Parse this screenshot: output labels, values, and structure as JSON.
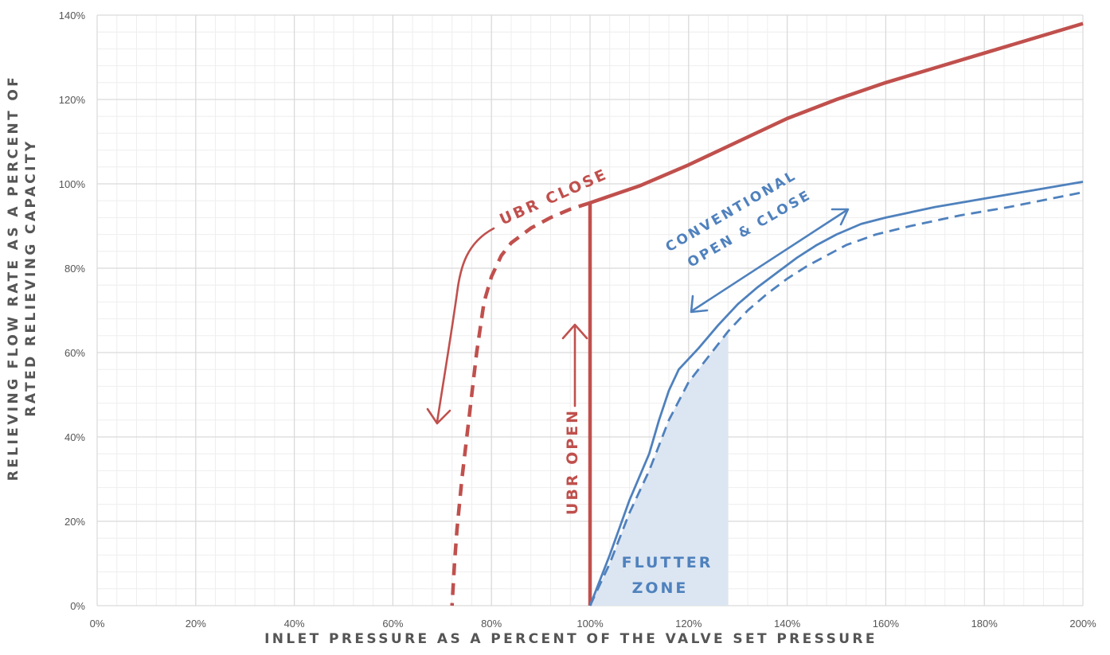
{
  "chart_data": {
    "type": "line",
    "xlabel": "INLET PRESSURE AS A PERCENT OF THE VALVE SET PRESSURE",
    "ylabel_lines": [
      "RELIEVING FLOW RATE AS A PERCENT OF",
      "RATED RELIEVING CAPACITY"
    ],
    "xlim": [
      0,
      200
    ],
    "ylim": [
      0,
      140
    ],
    "x_ticks": [
      {
        "v": 0,
        "label": "0%"
      },
      {
        "v": 20,
        "label": "20%"
      },
      {
        "v": 40,
        "label": "40%"
      },
      {
        "v": 60,
        "label": "60%"
      },
      {
        "v": 80,
        "label": "80%"
      },
      {
        "v": 100,
        "label": "100%"
      },
      {
        "v": 120,
        "label": "120%"
      },
      {
        "v": 140,
        "label": "140%"
      },
      {
        "v": 160,
        "label": "160%"
      },
      {
        "v": 180,
        "label": "180%"
      },
      {
        "v": 200,
        "label": "200%"
      }
    ],
    "y_ticks": [
      {
        "v": 0,
        "label": "0%"
      },
      {
        "v": 20,
        "label": "20%"
      },
      {
        "v": 40,
        "label": "40%"
      },
      {
        "v": 60,
        "label": "60%"
      },
      {
        "v": 80,
        "label": "80%"
      },
      {
        "v": 100,
        "label": "100%"
      },
      {
        "v": 120,
        "label": "120%"
      },
      {
        "v": 140,
        "label": "140%"
      }
    ],
    "grid": true,
    "colors": {
      "ubr": "#c0504d",
      "conventional": "#4f81bd",
      "flutter_fill": "#dce6f2",
      "grid_major": "#d9d9d9",
      "grid_minor": "#eeeeee"
    },
    "series": [
      {
        "key": "ubr_main",
        "style": "solid",
        "color": "#c0504d",
        "points": [
          [
            100,
            0
          ],
          [
            100,
            95.5
          ],
          [
            110,
            99.5
          ],
          [
            120,
            104.5
          ],
          [
            130,
            110
          ],
          [
            140,
            115.5
          ],
          [
            150,
            120
          ],
          [
            160,
            124
          ],
          [
            170,
            127.5
          ],
          [
            180,
            131
          ],
          [
            190,
            134.5
          ],
          [
            200,
            138
          ]
        ]
      },
      {
        "key": "ubr_close_dashed",
        "style": "dashed",
        "color": "#c0504d",
        "points": [
          [
            100,
            95.5
          ],
          [
            96,
            94
          ],
          [
            92,
            92
          ],
          [
            88,
            89.5
          ],
          [
            84,
            86
          ],
          [
            82,
            83
          ],
          [
            80,
            78
          ],
          [
            78.5,
            72
          ],
          [
            77,
            60
          ],
          [
            75.5,
            45
          ],
          [
            74,
            30
          ],
          [
            73,
            18
          ],
          [
            72.5,
            10
          ],
          [
            72,
            0
          ]
        ]
      },
      {
        "key": "conventional_solid",
        "style": "solid",
        "color": "#4f81bd",
        "points": [
          [
            100,
            0
          ],
          [
            104,
            12
          ],
          [
            108,
            25
          ],
          [
            112,
            36
          ],
          [
            114,
            44
          ],
          [
            116,
            51
          ],
          [
            118,
            56
          ],
          [
            122,
            61
          ],
          [
            126,
            66.5
          ],
          [
            130,
            71.5
          ],
          [
            134,
            75.5
          ],
          [
            138,
            79
          ],
          [
            142,
            82.5
          ],
          [
            146,
            85.5
          ],
          [
            150,
            88
          ],
          [
            155,
            90.5
          ],
          [
            160,
            92
          ],
          [
            170,
            94.5
          ],
          [
            180,
            96.5
          ],
          [
            190,
            98.5
          ],
          [
            200,
            100.5
          ]
        ]
      },
      {
        "key": "conventional_dashed",
        "style": "dashed",
        "color": "#4f81bd",
        "points": [
          [
            100,
            0
          ],
          [
            104,
            10
          ],
          [
            108,
            22
          ],
          [
            112,
            32
          ],
          [
            116,
            44
          ],
          [
            120,
            53
          ],
          [
            124,
            59
          ],
          [
            128,
            65
          ],
          [
            132,
            70
          ],
          [
            136,
            74
          ],
          [
            140,
            77.5
          ],
          [
            144,
            80.5
          ],
          [
            148,
            83
          ],
          [
            152,
            85.5
          ],
          [
            158,
            88
          ],
          [
            165,
            90
          ],
          [
            175,
            92.5
          ],
          [
            185,
            94.5
          ],
          [
            200,
            98
          ]
        ]
      }
    ],
    "flutter_zone": {
      "x_from": 100,
      "x_to": 128
    },
    "annotations": {
      "ubr_close": "UBR CLOSE",
      "ubr_open": "UBR OPEN",
      "conventional_line1": "CONVENTIONAL",
      "conventional_line2": "OPEN & CLOSE",
      "flutter_line1": "FLUTTER",
      "flutter_line2": "ZONE"
    }
  }
}
